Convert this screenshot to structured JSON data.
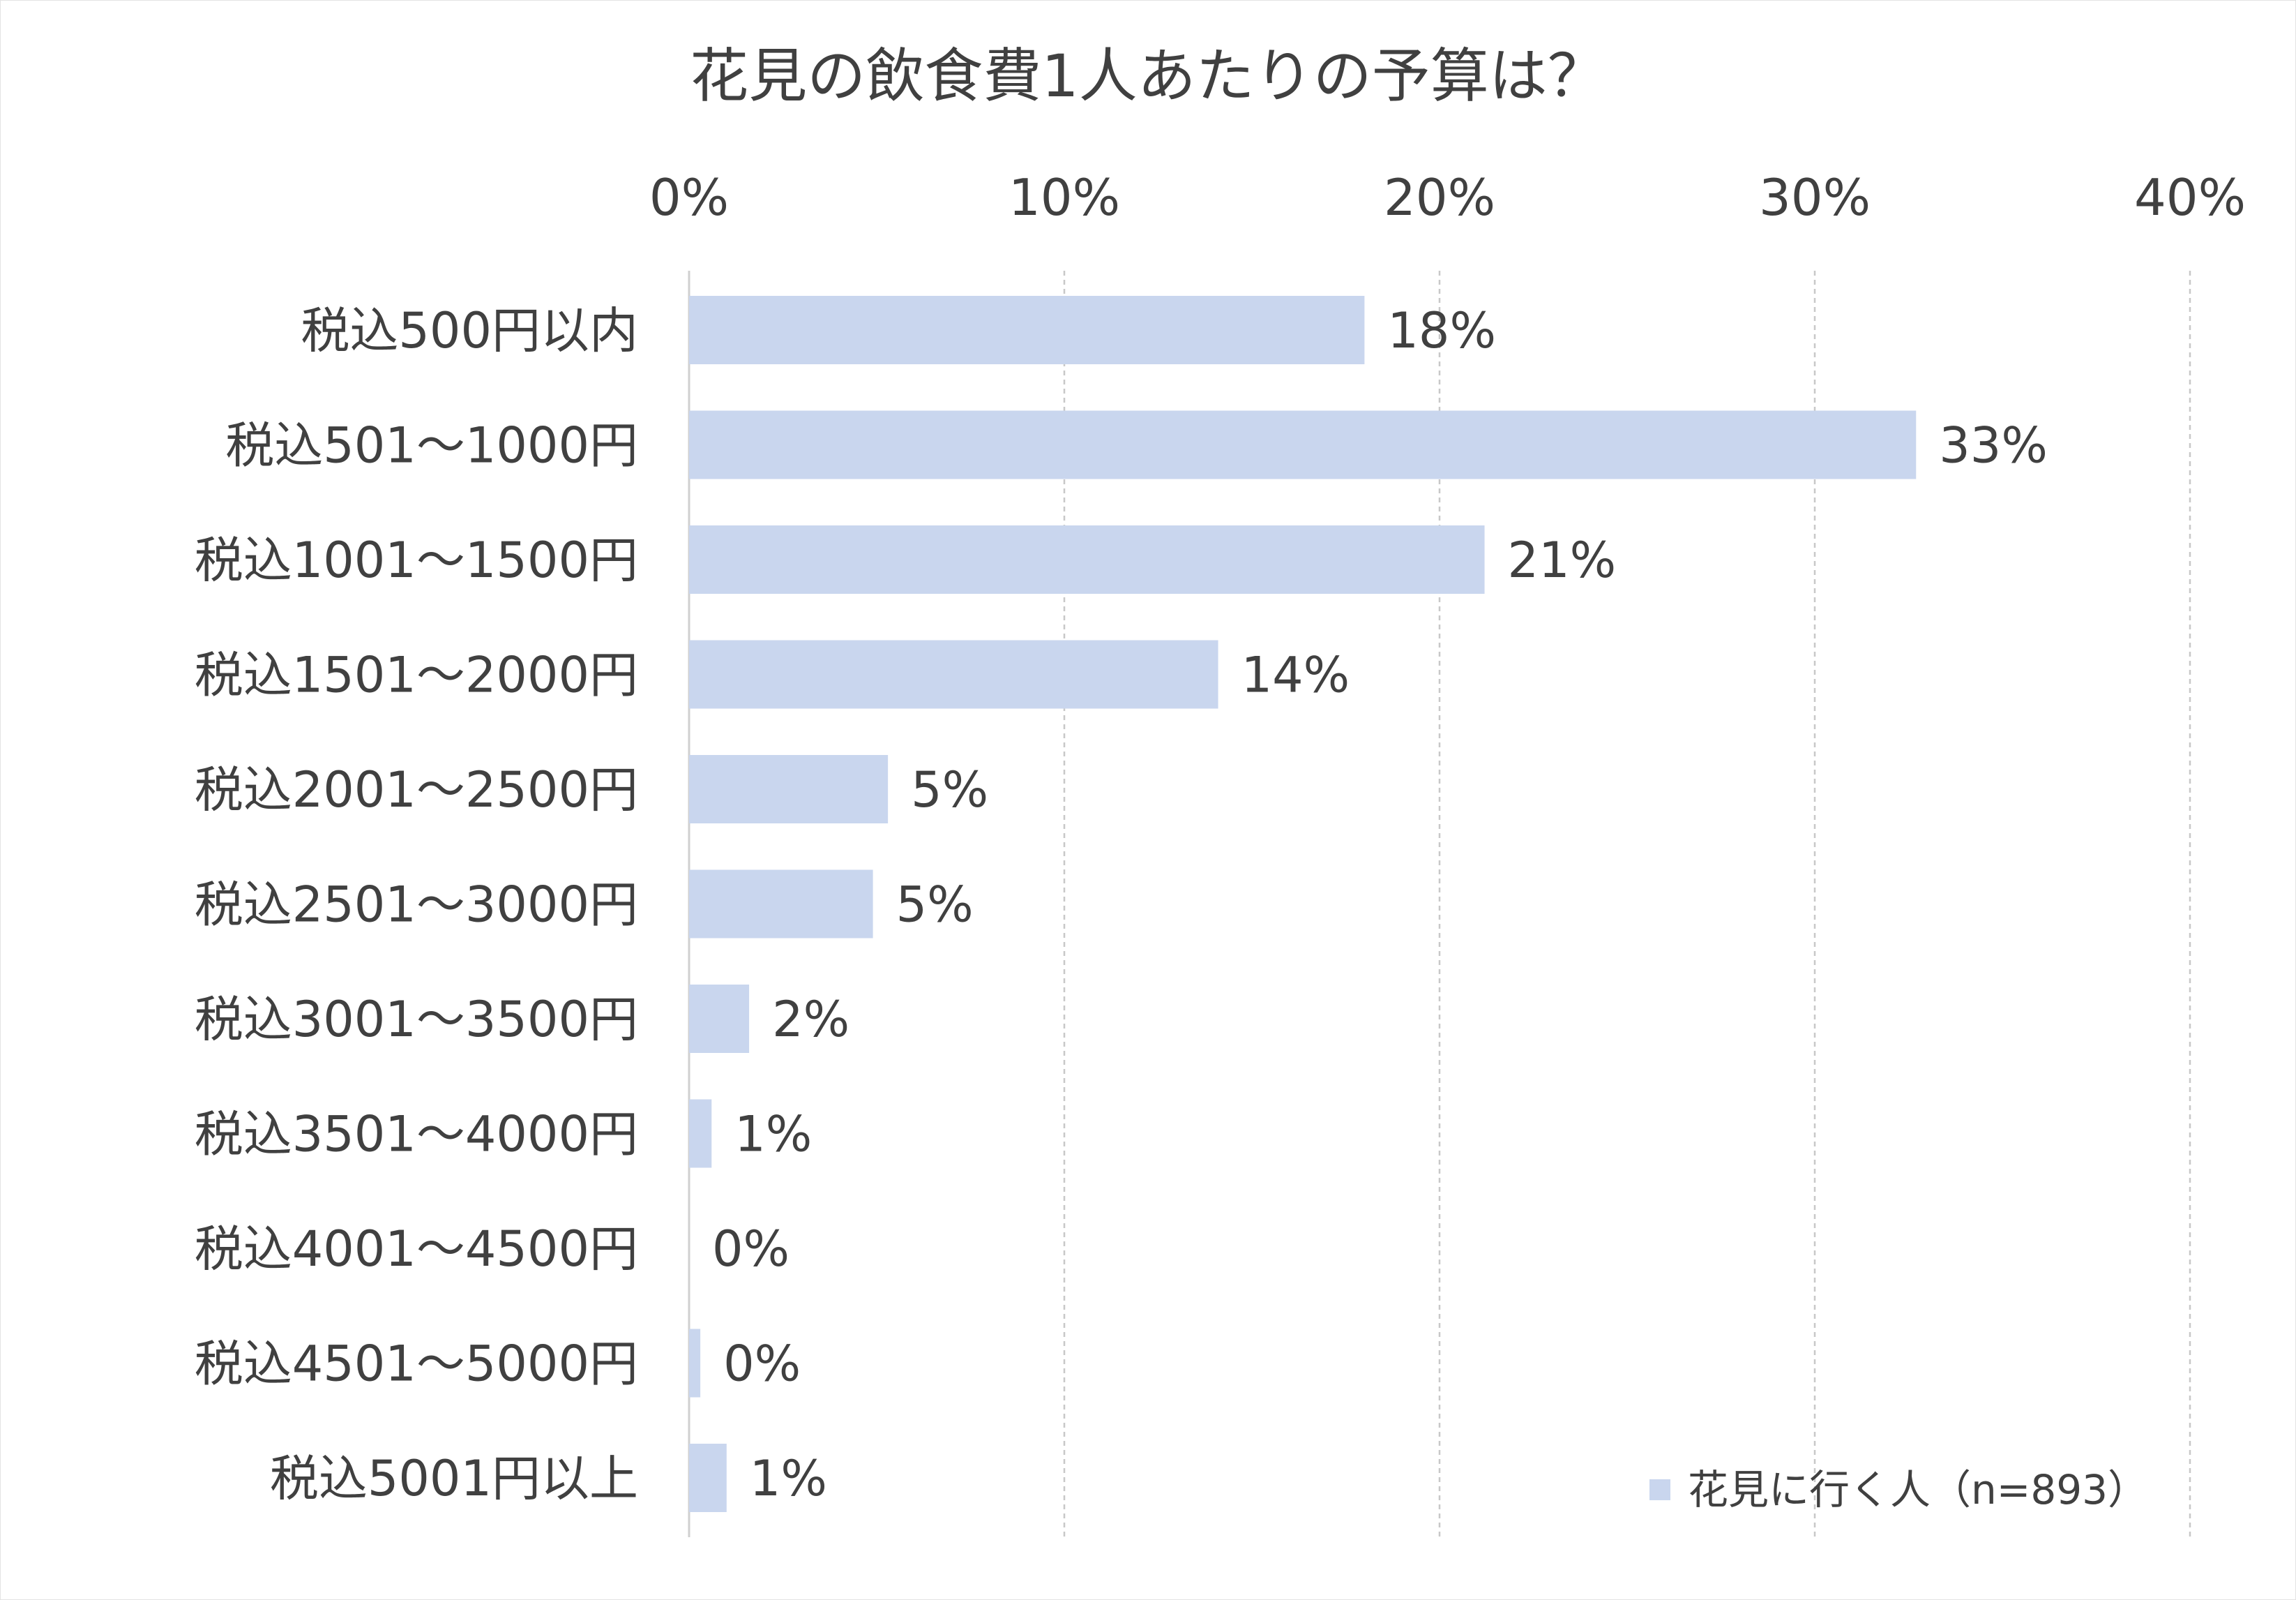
{
  "chart_data": {
    "type": "bar",
    "orientation": "horizontal",
    "title": "花見の飲食費1人あたりの予算は？",
    "categories": [
      "税込500円以内",
      "税込501～1000円",
      "税込1001～1500円",
      "税込1501～2000円",
      "税込2001～2500円",
      "税込2501～3000円",
      "税込3001～3500円",
      "税込3501～4000円",
      "税込4001～4500円",
      "税込4501～5000円",
      "税込5001円以上"
    ],
    "series": [
      {
        "name": "花見に行く人（n=893）",
        "values": [
          18,
          32.7,
          21.2,
          14.1,
          5.3,
          4.9,
          1.6,
          0.6,
          0,
          0.3,
          1
        ],
        "labels": [
          "18%",
          "33%",
          "21%",
          "14%",
          "5%",
          "5%",
          "2%",
          "1%",
          "0%",
          "0%",
          "1%"
        ],
        "color": "#c9d6ee"
      }
    ],
    "xlim": [
      0,
      40
    ],
    "xticks": [
      0,
      10,
      20,
      30,
      40
    ],
    "xtick_labels": [
      "0%",
      "10%",
      "20%",
      "30%",
      "40%"
    ],
    "x_axis_position": "top",
    "grid": "vertical dashed",
    "legend_position": "bottom-right",
    "colors": {
      "bar": "#c9d6ee",
      "grid": "#c8c8c8",
      "axis": "#d0d0d0",
      "text": "#404040"
    }
  }
}
